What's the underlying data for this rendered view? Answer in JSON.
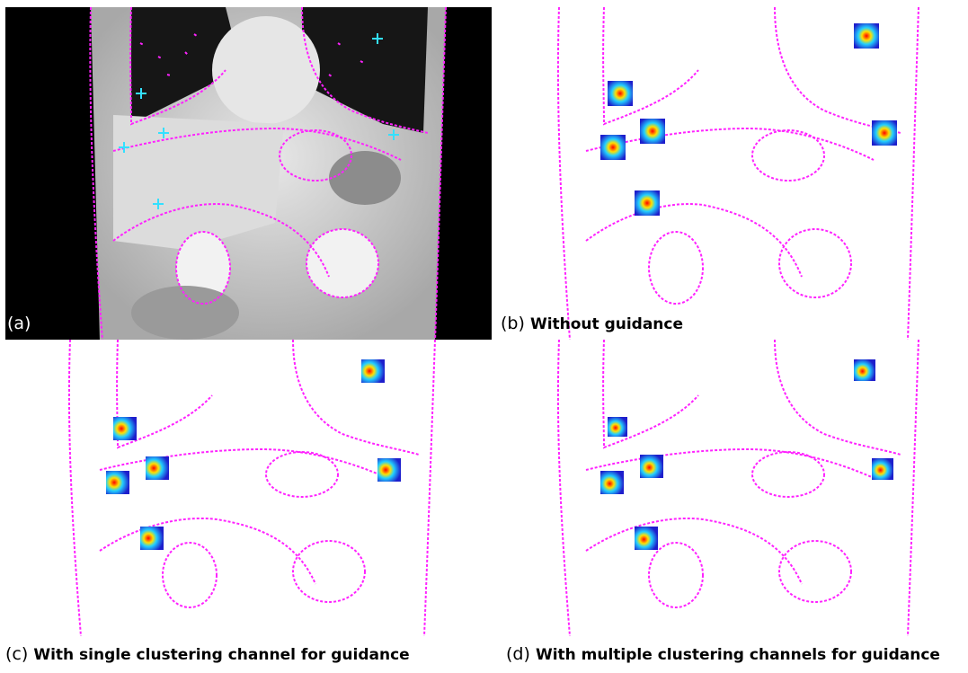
{
  "figure": {
    "panels": [
      {
        "id": "a",
        "label": "(a)",
        "title": ""
      },
      {
        "id": "b",
        "label": "(b)",
        "title": "Without guidance"
      },
      {
        "id": "c",
        "label": "(c)",
        "title": "With single clustering channel for guidance"
      },
      {
        "id": "d",
        "label": "(d)",
        "title": "With multiple clustering channels for guidance"
      }
    ],
    "colors": {
      "contour": "#ff22ff",
      "landmark_cross": "#33e0ff",
      "ct_background": "#000000",
      "ct_tissue": "#cfcfcf",
      "ct_lung": "#1a1a1a",
      "heatmap_low": "#1e1ecc",
      "heatmap_mid": "#ffe000",
      "heatmap_high": "#ff0000"
    },
    "landmark_count": 6
  }
}
